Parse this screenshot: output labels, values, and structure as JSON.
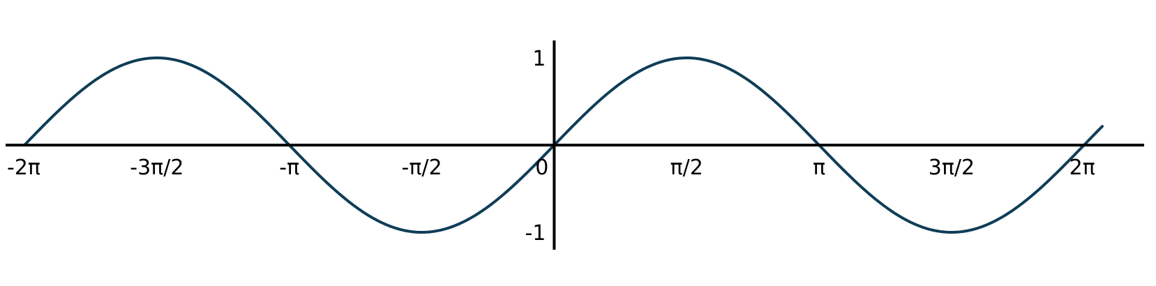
{
  "chart_data": {
    "type": "line",
    "title": "",
    "xlabel": "",
    "ylabel": "",
    "xlim": [
      -6.2832,
      6.5
    ],
    "ylim": [
      -1.2,
      1.2
    ],
    "grid": false,
    "axis_color": "#000000",
    "x_ticks": [
      {
        "value": -6.2832,
        "label": "-2π"
      },
      {
        "value": -4.7124,
        "label": "-3π/2"
      },
      {
        "value": -3.1416,
        "label": "-π"
      },
      {
        "value": -1.5708,
        "label": "-π/2"
      },
      {
        "value": 0,
        "label": "0"
      },
      {
        "value": 1.5708,
        "label": "π/2"
      },
      {
        "value": 3.1416,
        "label": "π"
      },
      {
        "value": 4.7124,
        "label": "3π/2"
      },
      {
        "value": 6.2832,
        "label": "2π"
      }
    ],
    "y_ticks": [
      {
        "value": 1,
        "label": "1"
      },
      {
        "value": -1,
        "label": "-1"
      }
    ],
    "series": [
      {
        "color": "#0f3d57",
        "x": [
          -6.2832,
          -5.4978,
          -4.7124,
          -3.927,
          -3.1416,
          -2.3562,
          -1.5708,
          -0.7854,
          0,
          0.7854,
          1.5708,
          2.3562,
          3.1416,
          3.927,
          4.7124,
          5.4978,
          6.2832,
          6.5
        ],
        "y": [
          0,
          0.7071,
          1,
          0.7071,
          0,
          -0.7071,
          -1,
          -0.7071,
          0,
          0.7071,
          1,
          0.7071,
          0,
          -0.7071,
          -1,
          -0.7071,
          0,
          0.2151
        ]
      }
    ]
  }
}
